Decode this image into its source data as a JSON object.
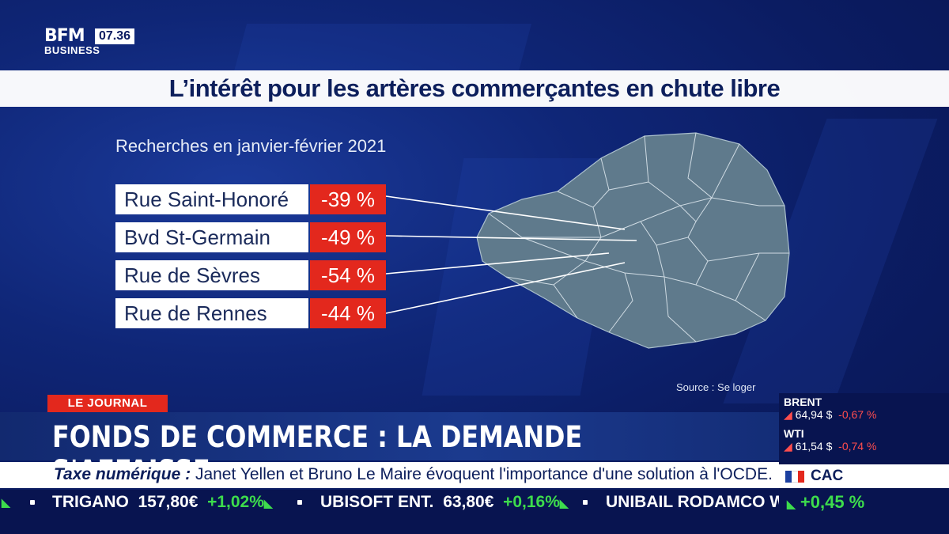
{
  "channel": {
    "logo_line1": "BFM",
    "logo_line2": "BUSINESS",
    "time": "07.36"
  },
  "title": "L’intérêt pour les artères commerçantes en chute libre",
  "subtitle": "Recherches en  janvier-février 2021",
  "streets": [
    {
      "name": "Rue Saint-Honoré",
      "change": "-39 %"
    },
    {
      "name": "Bvd St-Germain",
      "change": "-49 %"
    },
    {
      "name": "Rue de Sèvres",
      "change": "-54 %"
    },
    {
      "name": "Rue de Rennes",
      "change": "-44 %"
    }
  ],
  "source": "Source : Se loger",
  "show": {
    "tag": "LE JOURNAL",
    "headline": "FONDS DE COMMERCE : LA DEMANDE S'AFFAISSE",
    "news_label": "Taxe numérique :",
    "news_text": " Janet Yellen et Bruno Le Maire évoquent l'importance d'une solution à l'OCDE."
  },
  "ticker": [
    {
      "name": "TRIGANO",
      "price": "157,80€",
      "change": "+1,02%"
    },
    {
      "name": "UBISOFT ENT.",
      "price": "63,80€",
      "change": "+0,16%"
    },
    {
      "name": "UNIBAIL RODAMCO W",
      "price": "",
      "change": ""
    }
  ],
  "markets": [
    {
      "name": "BRENT",
      "price": "64,94 $",
      "change": "-0,67 %"
    },
    {
      "name": "WTI",
      "price": "61,54 $",
      "change": "-0,74 %"
    }
  ],
  "index": {
    "name": "CAC",
    "change": "+0,45 %"
  },
  "colors": {
    "accent_red": "#e3281d",
    "up_green": "#3ddc4c",
    "navy": "#0b1c62",
    "map_fill": "#5f7a8c"
  },
  "icons": {
    "up": "triangle-up-icon",
    "down": "triangle-down-icon",
    "flag": "france-flag-icon"
  }
}
